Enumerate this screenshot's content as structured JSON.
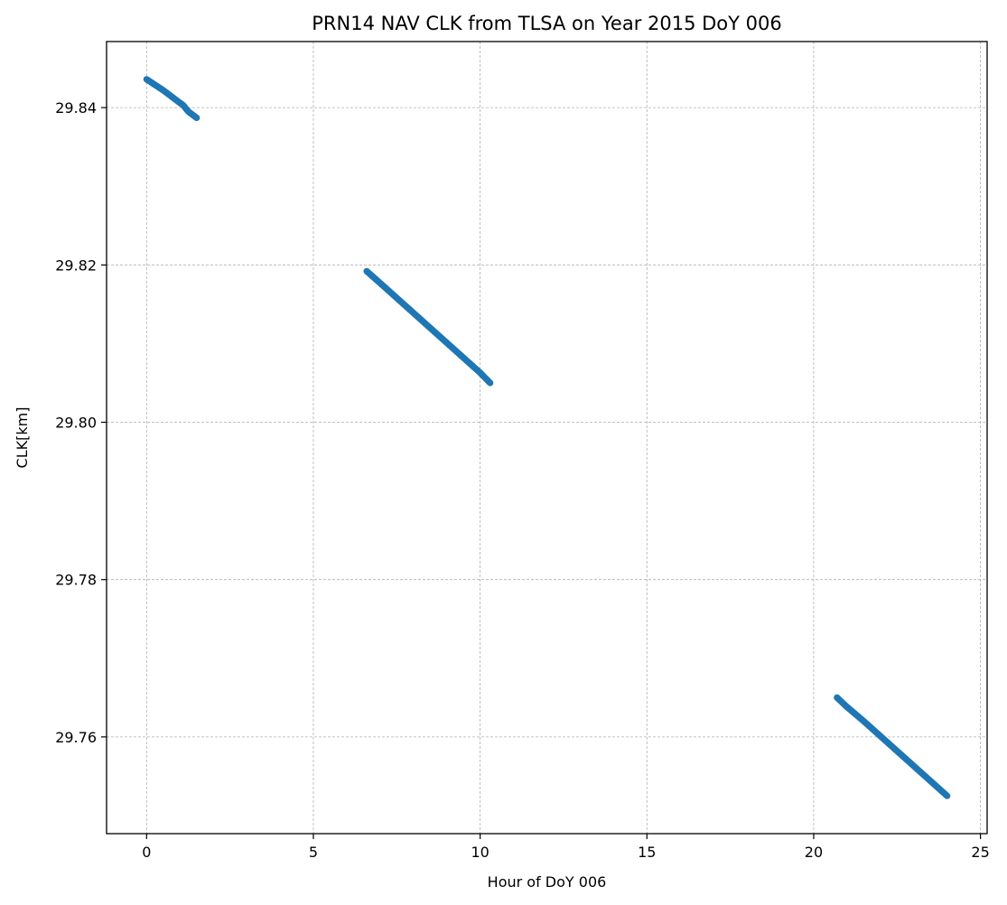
{
  "chart_data": {
    "type": "scatter",
    "title": "PRN14 NAV CLK from TLSA on Year 2015 DoY 006",
    "xlabel": "Hour of DoY 006",
    "ylabel": "CLK[km]",
    "xlim": [
      -1.2,
      25.2
    ],
    "ylim": [
      29.7477,
      29.8484
    ],
    "xticks": [
      0,
      5,
      10,
      15,
      20,
      25
    ],
    "xtick_labels": [
      "0",
      "5",
      "10",
      "15",
      "20",
      "25"
    ],
    "yticks": [
      29.76,
      29.78,
      29.8,
      29.82,
      29.84
    ],
    "ytick_labels": [
      "29.76",
      "29.78",
      "29.80",
      "29.82",
      "29.84"
    ],
    "grid": true,
    "marker_color": "#1f77b4",
    "series": [
      {
        "segments": [
          {
            "x": [
              0.0,
              0.25,
              0.5,
              0.75,
              1.0,
              1.1,
              1.25,
              1.5
            ],
            "y": [
              29.8436,
              29.8429,
              29.8422,
              29.8414,
              29.8406,
              29.8403,
              29.8395,
              29.8387
            ]
          },
          {
            "x": [
              6.6,
              7.0,
              7.5,
              8.0,
              8.5,
              9.0,
              9.5,
              10.0,
              10.3
            ],
            "y": [
              29.8192,
              29.8177,
              29.8158,
              29.8139,
              29.812,
              29.8101,
              29.8082,
              29.8063,
              29.805
            ]
          },
          {
            "x": [
              20.7,
              21.0,
              21.5,
              22.0,
              22.5,
              23.0,
              23.5,
              24.0
            ],
            "y": [
              29.765,
              29.7638,
              29.762,
              29.7601,
              29.7582,
              29.7563,
              29.7544,
              29.7525
            ]
          }
        ]
      }
    ]
  }
}
